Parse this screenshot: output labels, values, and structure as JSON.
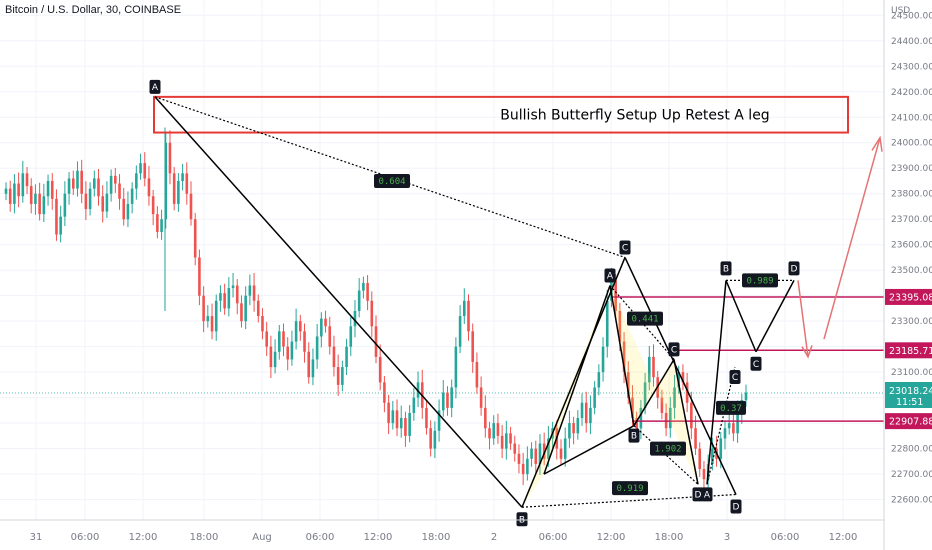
{
  "header": {
    "symbol_line": "Bitcoin / U.S. Dollar, 30, COINBASE"
  },
  "axis": {
    "currency": "USD"
  },
  "chart_data": {
    "type": "candlestick",
    "title": "Bitcoin / U.S. Dollar, 30, COINBASE",
    "ylim": [
      22520,
      24560
    ],
    "y_ticks": [
      {
        "value": 22600,
        "label": "22600.00"
      },
      {
        "value": 22700,
        "label": "22700.00"
      },
      {
        "value": 22800,
        "label": "22800.00"
      },
      {
        "value": 22900,
        "label": "22900.00"
      },
      {
        "value": 23000,
        "label": "23000.00"
      },
      {
        "value": 23100,
        "label": "23100.00"
      },
      {
        "value": 23200,
        "label": "23200.00"
      },
      {
        "value": 23300,
        "label": "23300.00"
      },
      {
        "value": 23400,
        "label": "23400.00"
      },
      {
        "value": 23500,
        "label": "23500.00"
      },
      {
        "value": 23600,
        "label": "23600.00"
      },
      {
        "value": 23700,
        "label": "23700.00"
      },
      {
        "value": 23800,
        "label": "23800.00"
      },
      {
        "value": 23900,
        "label": "23900.00"
      },
      {
        "value": 24000,
        "label": "24000.00"
      },
      {
        "value": 24100,
        "label": "24100.00"
      },
      {
        "value": 24200,
        "label": "24200.00"
      },
      {
        "value": 24300,
        "label": "24300.00"
      },
      {
        "value": 24400,
        "label": "24400.00"
      },
      {
        "value": 24500,
        "label": "24500.00"
      }
    ],
    "x_ticks": [
      "31",
      "06:00",
      "12:00",
      "18:00",
      "Aug",
      "06:00",
      "12:00",
      "18:00",
      "2",
      "06:00",
      "12:00",
      "18:00",
      "3",
      "06:00",
      "12:00"
    ],
    "annotation": "Bullish Butterfly Setup Up Retest A leg",
    "price_levels": [
      {
        "label": "23395.08",
        "value": 23395.08,
        "color": "#c2185b"
      },
      {
        "label": "23185.71",
        "value": 23185.71,
        "color": "#c2185b"
      },
      {
        "label": "22907.88",
        "value": 22907.88,
        "color": "#c2185b"
      }
    ],
    "last_price": {
      "label": "23018.24",
      "countdown": "11:51",
      "value": 23018.24,
      "color": "#26a69a"
    },
    "harmonic_points": [
      {
        "label": "A",
        "value": 24180
      },
      {
        "label": "B",
        "value": 22570
      },
      {
        "label": "C",
        "value": 23550
      },
      {
        "label": "A",
        "value": 23440
      },
      {
        "label": "B",
        "value": 22890
      },
      {
        "label": "C",
        "value": 23150
      },
      {
        "label": "D",
        "value": 22660
      },
      {
        "label": "A",
        "value": 22660
      },
      {
        "label": "B",
        "value": 23460
      },
      {
        "label": "C",
        "value": 23180
      },
      {
        "label": "D",
        "value": 23460
      },
      {
        "label": "C",
        "value": 23120
      },
      {
        "label": "D",
        "value": 22620
      }
    ],
    "ratios": [
      "0.604",
      "0.441",
      "1.902",
      "0.919",
      "0.989",
      "0.37"
    ],
    "candles_seed": [
      23820,
      23760,
      23840,
      23790,
      23880,
      23830,
      23760,
      23800,
      23720,
      23790,
      23850,
      23780,
      23640,
      23710,
      23800,
      23860,
      23820,
      23890,
      23800,
      23740,
      23820,
      23860,
      23790,
      23730,
      23800,
      23870,
      23840,
      23780,
      23700,
      23760,
      23820,
      23880,
      23920,
      23860,
      23790,
      23720,
      23650,
      23700,
      24000,
      23880,
      23760,
      23850,
      23880,
      23800,
      23700,
      23550,
      23400,
      23300,
      23320,
      23260,
      23380,
      23410,
      23350,
      23430,
      23440,
      23370,
      23300,
      23400,
      23440,
      23380,
      23320,
      23260,
      23200,
      23120,
      23180,
      23260,
      23200,
      23150,
      23220,
      23300,
      23260,
      23180,
      23080,
      23150,
      23240,
      23310,
      23280,
      23200,
      23120,
      23050,
      23120,
      23200,
      23280,
      23340,
      23420,
      23450,
      23380,
      23280,
      23160,
      23060,
      22980,
      22900,
      22950,
      22880,
      22920,
      22850,
      22940,
      23000,
      23060,
      22960,
      22880,
      22800,
      22870,
      22950,
      23020,
      22960,
      23040,
      23200,
      23320,
      23380,
      23260,
      23140,
      23040,
      22960,
      22880,
      22840,
      22900,
      22850,
      22800,
      22860,
      22820,
      22780,
      22740,
      22700,
      22760,
      22800,
      22740,
      22820,
      22760,
      22840,
      22880,
      22800,
      22760,
      22840,
      22900,
      22860,
      22920,
      22980,
      22900,
      22960,
      23040,
      23100,
      23200,
      23380,
      23460,
      23340,
      23220,
      23100,
      23000,
      22920,
      22880,
      22960,
      23060,
      23160,
      23080,
      23000,
      22940,
      22880,
      22960,
      23040,
      23100,
      23060,
      22980,
      22880,
      22800,
      22720,
      22680,
      22740,
      22800,
      22760,
      22840,
      22880,
      22900,
      22860,
      22940,
      22990,
      23020
    ]
  }
}
